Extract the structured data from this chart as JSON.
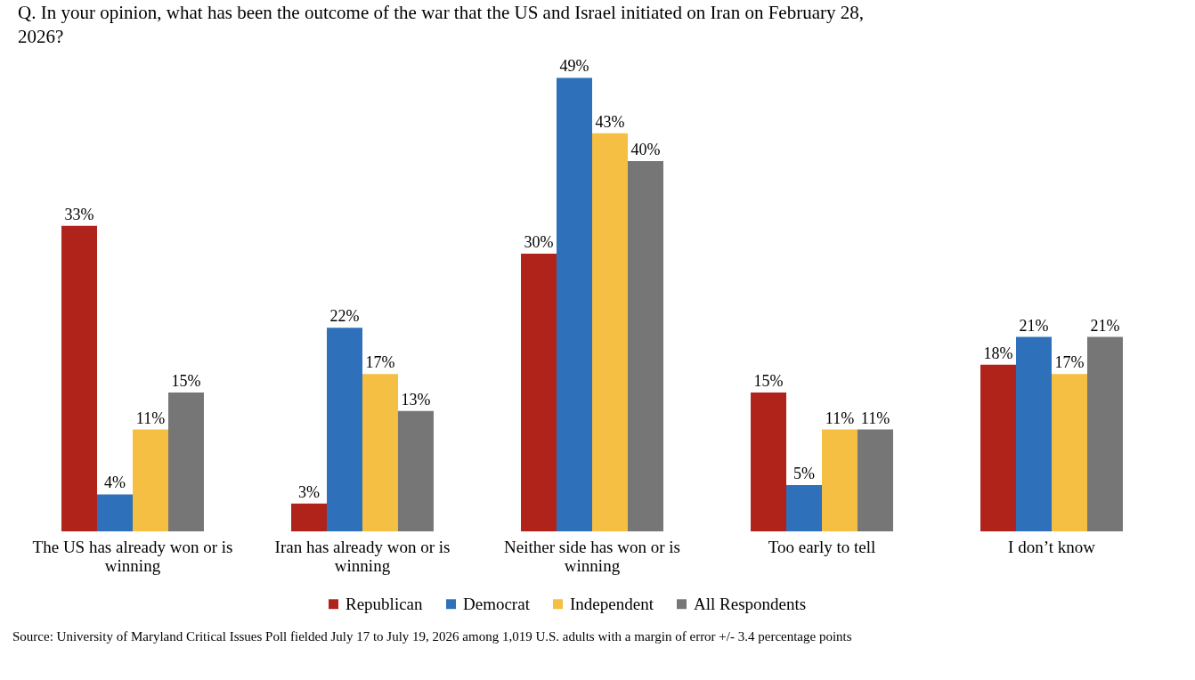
{
  "chart_data": {
    "type": "bar",
    "title": "Q. In your opinion, what has been the outcome of the war that the US and Israel initiated on Iran on February 28, 2026?",
    "categories": [
      "The US has already won or is winning",
      "Iran has already won or is winning",
      "Neither side has won or is winning",
      "Too early to tell",
      "I don’t know"
    ],
    "series": [
      {
        "name": "Republican",
        "color": "#b0231b",
        "values": [
          33,
          3,
          30,
          15,
          18
        ],
        "value_labels": [
          "33%",
          "3%",
          "30%",
          "15%",
          "18%"
        ]
      },
      {
        "name": "Democrat",
        "color": "#2e70ba",
        "values": [
          4,
          22,
          49,
          5,
          21
        ],
        "value_labels": [
          "4%",
          "22%",
          "49%",
          "5%",
          "21%"
        ]
      },
      {
        "name": "Independent",
        "color": "#f4bf42",
        "values": [
          11,
          17,
          43,
          11,
          17
        ],
        "value_labels": [
          "11%",
          "17%",
          "43%",
          "11%",
          "17%"
        ]
      },
      {
        "name": "All Respondents",
        "color": "#767676",
        "values": [
          15,
          13,
          40,
          11,
          21
        ],
        "value_labels": [
          "15%",
          "13%",
          "40%",
          "11%",
          "21%"
        ]
      }
    ],
    "legend": "bottom",
    "annotations": [
      "Source: University of Maryland Critical Issues Poll fielded July 17 to July 19, 2026 among 1,019 U.S. adults with a margin of error +/- 3.4 percentage points"
    ]
  }
}
